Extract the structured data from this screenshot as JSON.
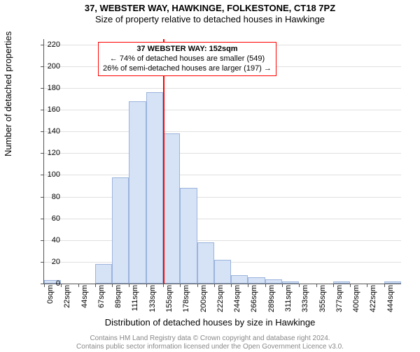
{
  "title": "37, WEBSTER WAY, HAWKINGE, FOLKESTONE, CT18 7PZ",
  "subtitle": "Size of property relative to detached houses in Hawkinge",
  "title_fontsize": 13,
  "subtitle_fontsize": 13,
  "chart": {
    "type": "histogram",
    "ylabel": "Number of detached properties",
    "xlabel": "Distribution of detached houses by size in Hawkinge",
    "ylim": [
      0,
      225
    ],
    "ytick_step": 20,
    "ytick_fontsize": 11,
    "label_fontsize": 13,
    "xtick_labels": [
      "0sqm",
      "22sqm",
      "44sqm",
      "67sqm",
      "89sqm",
      "111sqm",
      "133sqm",
      "155sqm",
      "178sqm",
      "200sqm",
      "222sqm",
      "244sqm",
      "266sqm",
      "289sqm",
      "311sqm",
      "333sqm",
      "355sqm",
      "377sqm",
      "400sqm",
      "422sqm",
      "444sqm"
    ],
    "bars": [
      3,
      0,
      0,
      18,
      98,
      168,
      176,
      138,
      88,
      38,
      22,
      8,
      6,
      4,
      2,
      0,
      0,
      2,
      0,
      0,
      2
    ],
    "bar_fill": "#d6e2f5",
    "bar_border": "#9bb4dd",
    "background": "#ffffff",
    "grid_color": "#e0e0e0",
    "axis_color": "#555555",
    "marker": {
      "bin_index": 7,
      "color": "#ff0000",
      "annotation": {
        "line1": "37 WEBSTER WAY: 152sqm",
        "line2": "← 74% of detached houses are smaller (549)",
        "line3": "26% of semi-detached houses are larger (197) →",
        "border_color": "#ff0000",
        "fontsize": 11
      }
    }
  },
  "footer": {
    "line1": "Contains HM Land Registry data © Crown copyright and database right 2024.",
    "line2": "Contains public sector information licensed under the Open Government Licence v3.0.",
    "color": "#888888",
    "fontsize": 10
  }
}
